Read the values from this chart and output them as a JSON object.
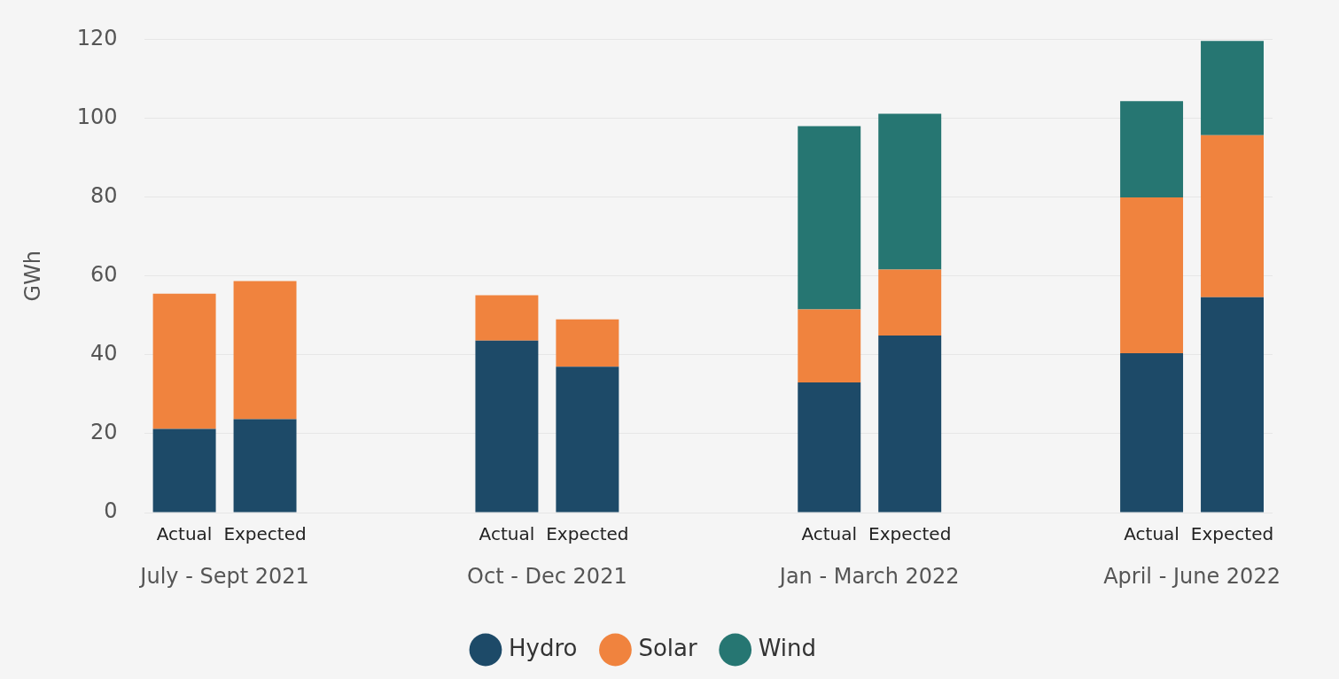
{
  "chart_data": {
    "type": "bar",
    "stacked": true,
    "ylabel": "GWh",
    "categories": [
      "Actual",
      "Expected",
      null,
      null,
      "Actual",
      "Expected",
      null,
      null,
      "Actual",
      "Expected",
      null,
      null,
      "Actual",
      "Expected"
    ],
    "series": [
      {
        "name": "Hydro",
        "color": "#1d4a68",
        "values": [
          21.2,
          23.7,
          null,
          null,
          43.6,
          37.0,
          null,
          null,
          33.0,
          44.9,
          null,
          null,
          40.4,
          54.6
        ]
      },
      {
        "name": "Solar",
        "color": "#f0833e",
        "values": [
          34.3,
          35.0,
          null,
          null,
          11.5,
          12.0,
          null,
          null,
          18.5,
          16.7,
          null,
          null,
          39.5,
          41.1
        ]
      },
      {
        "name": "Wind",
        "color": "#267672",
        "values": [
          null,
          null,
          null,
          null,
          null,
          null,
          null,
          null,
          46.5,
          39.5,
          null,
          null,
          24.4,
          23.9
        ]
      }
    ],
    "ylim": [
      0,
      120
    ],
    "yticks": [
      0,
      20,
      40,
      60,
      80,
      100,
      120
    ],
    "grid": "y",
    "legend": "bottom",
    "annotations": [
      "July - Sept 2021",
      "Oct - Dec 2021",
      "Jan - March 2022",
      "April - June 2022"
    ]
  }
}
